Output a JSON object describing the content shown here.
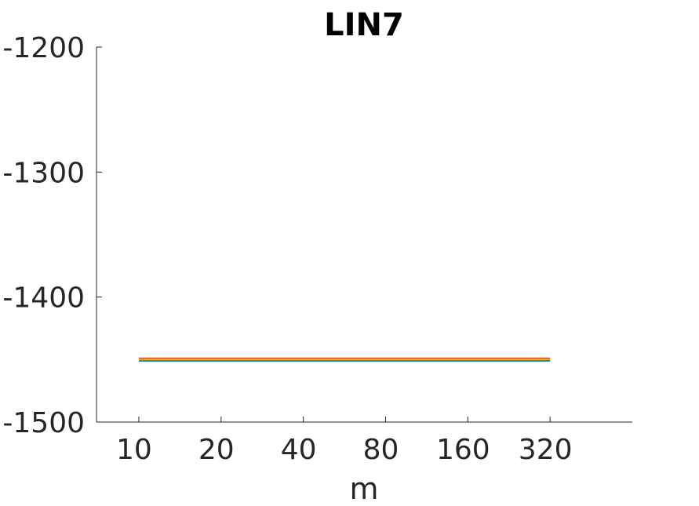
{
  "chart_data": {
    "type": "line",
    "title": "LIN7",
    "xlabel": "m",
    "ylabel": "",
    "x_scale": "log2",
    "x": [
      10,
      20,
      40,
      80,
      160,
      320
    ],
    "x_tick_labels": [
      "10",
      "20",
      "40",
      "80",
      "160",
      "320"
    ],
    "xlim": [
      7,
      640
    ],
    "ylim": [
      -1500,
      -1200
    ],
    "y_ticks": [
      -1500,
      -1400,
      -1300,
      -1200
    ],
    "y_tick_labels": [
      "-1500",
      "-1400",
      "-1300",
      "-1200"
    ],
    "grid": false,
    "series": [
      {
        "values": [
          -1451,
          -1451,
          -1451,
          -1451,
          -1451,
          -1451
        ],
        "color": "#0072BD"
      },
      {
        "values": [
          -1449,
          -1449,
          -1449,
          -1449,
          -1449,
          -1449
        ],
        "color": "#D95319"
      },
      {
        "values": [
          -1450,
          -1450,
          -1450,
          -1450,
          -1450,
          -1450
        ],
        "color": "#EDB120"
      }
    ]
  }
}
